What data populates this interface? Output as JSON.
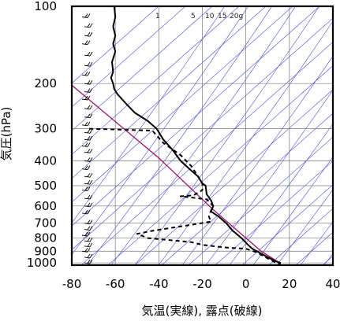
{
  "chart_data": {
    "type": "line",
    "title": "",
    "xlabel": "気温(実線), 露点(破線)",
    "ylabel": "気圧(hPa)",
    "xlim": [
      -80,
      40
    ],
    "ylim": [
      1020,
      100
    ],
    "yscale": "log",
    "x_ticks": [
      -80,
      -60,
      -40,
      -20,
      0,
      20,
      40
    ],
    "y_ticks": [
      100,
      200,
      300,
      400,
      500,
      600,
      700,
      800,
      900,
      1000
    ],
    "grid": true,
    "mixing_ratio_labels": [
      "1",
      "5",
      "10",
      "15",
      "20g"
    ],
    "series": [
      {
        "style": "solid",
        "color": "#000000",
        "points": [
          [
            -60.5,
            100
          ],
          [
            -60,
            110
          ],
          [
            -61,
            120
          ],
          [
            -60,
            130
          ],
          [
            -61,
            140
          ],
          [
            -60,
            150
          ],
          [
            -61.5,
            165
          ],
          [
            -61,
            180
          ],
          [
            -62,
            190
          ],
          [
            -61,
            200
          ],
          [
            -60.5,
            210
          ],
          [
            -59,
            220
          ],
          [
            -55,
            240
          ],
          [
            -51,
            260
          ],
          [
            -45,
            280
          ],
          [
            -41,
            300
          ],
          [
            -38,
            330
          ],
          [
            -34,
            360
          ],
          [
            -30,
            400
          ],
          [
            -26,
            430
          ],
          [
            -22,
            460
          ],
          [
            -20,
            490
          ],
          [
            -18.5,
            500
          ],
          [
            -18,
            540
          ],
          [
            -16,
            570
          ],
          [
            -15,
            600
          ],
          [
            -16,
            630
          ],
          [
            -12.5,
            660
          ],
          [
            -9,
            700
          ],
          [
            -6,
            750
          ],
          [
            -2,
            800
          ],
          [
            1,
            850
          ],
          [
            3,
            880
          ],
          [
            5,
            900
          ],
          [
            9,
            940
          ],
          [
            13,
            980
          ],
          [
            16,
            1000
          ]
        ]
      },
      {
        "style": "dashed",
        "color": "#000000",
        "points": [
          [
            -72,
            300
          ],
          [
            -43,
            305
          ],
          [
            -38,
            340
          ],
          [
            -30,
            380
          ],
          [
            -25,
            420
          ],
          [
            -22,
            460
          ],
          [
            -20,
            490
          ],
          [
            -20,
            520
          ],
          [
            -24,
            545
          ],
          [
            -30,
            550
          ],
          [
            -18,
            565
          ],
          [
            -15,
            600
          ],
          [
            -16,
            625
          ],
          [
            -17,
            660
          ],
          [
            -16,
            690
          ],
          [
            -25,
            710
          ],
          [
            -43,
            750
          ],
          [
            -50,
            770
          ],
          [
            -45,
            800
          ],
          [
            -25,
            830
          ],
          [
            -20,
            850
          ],
          [
            -10,
            870
          ],
          [
            0,
            880
          ],
          [
            5,
            910
          ],
          [
            8,
            940
          ],
          [
            14,
            1000
          ],
          [
            16,
            1010
          ]
        ]
      }
    ]
  }
}
